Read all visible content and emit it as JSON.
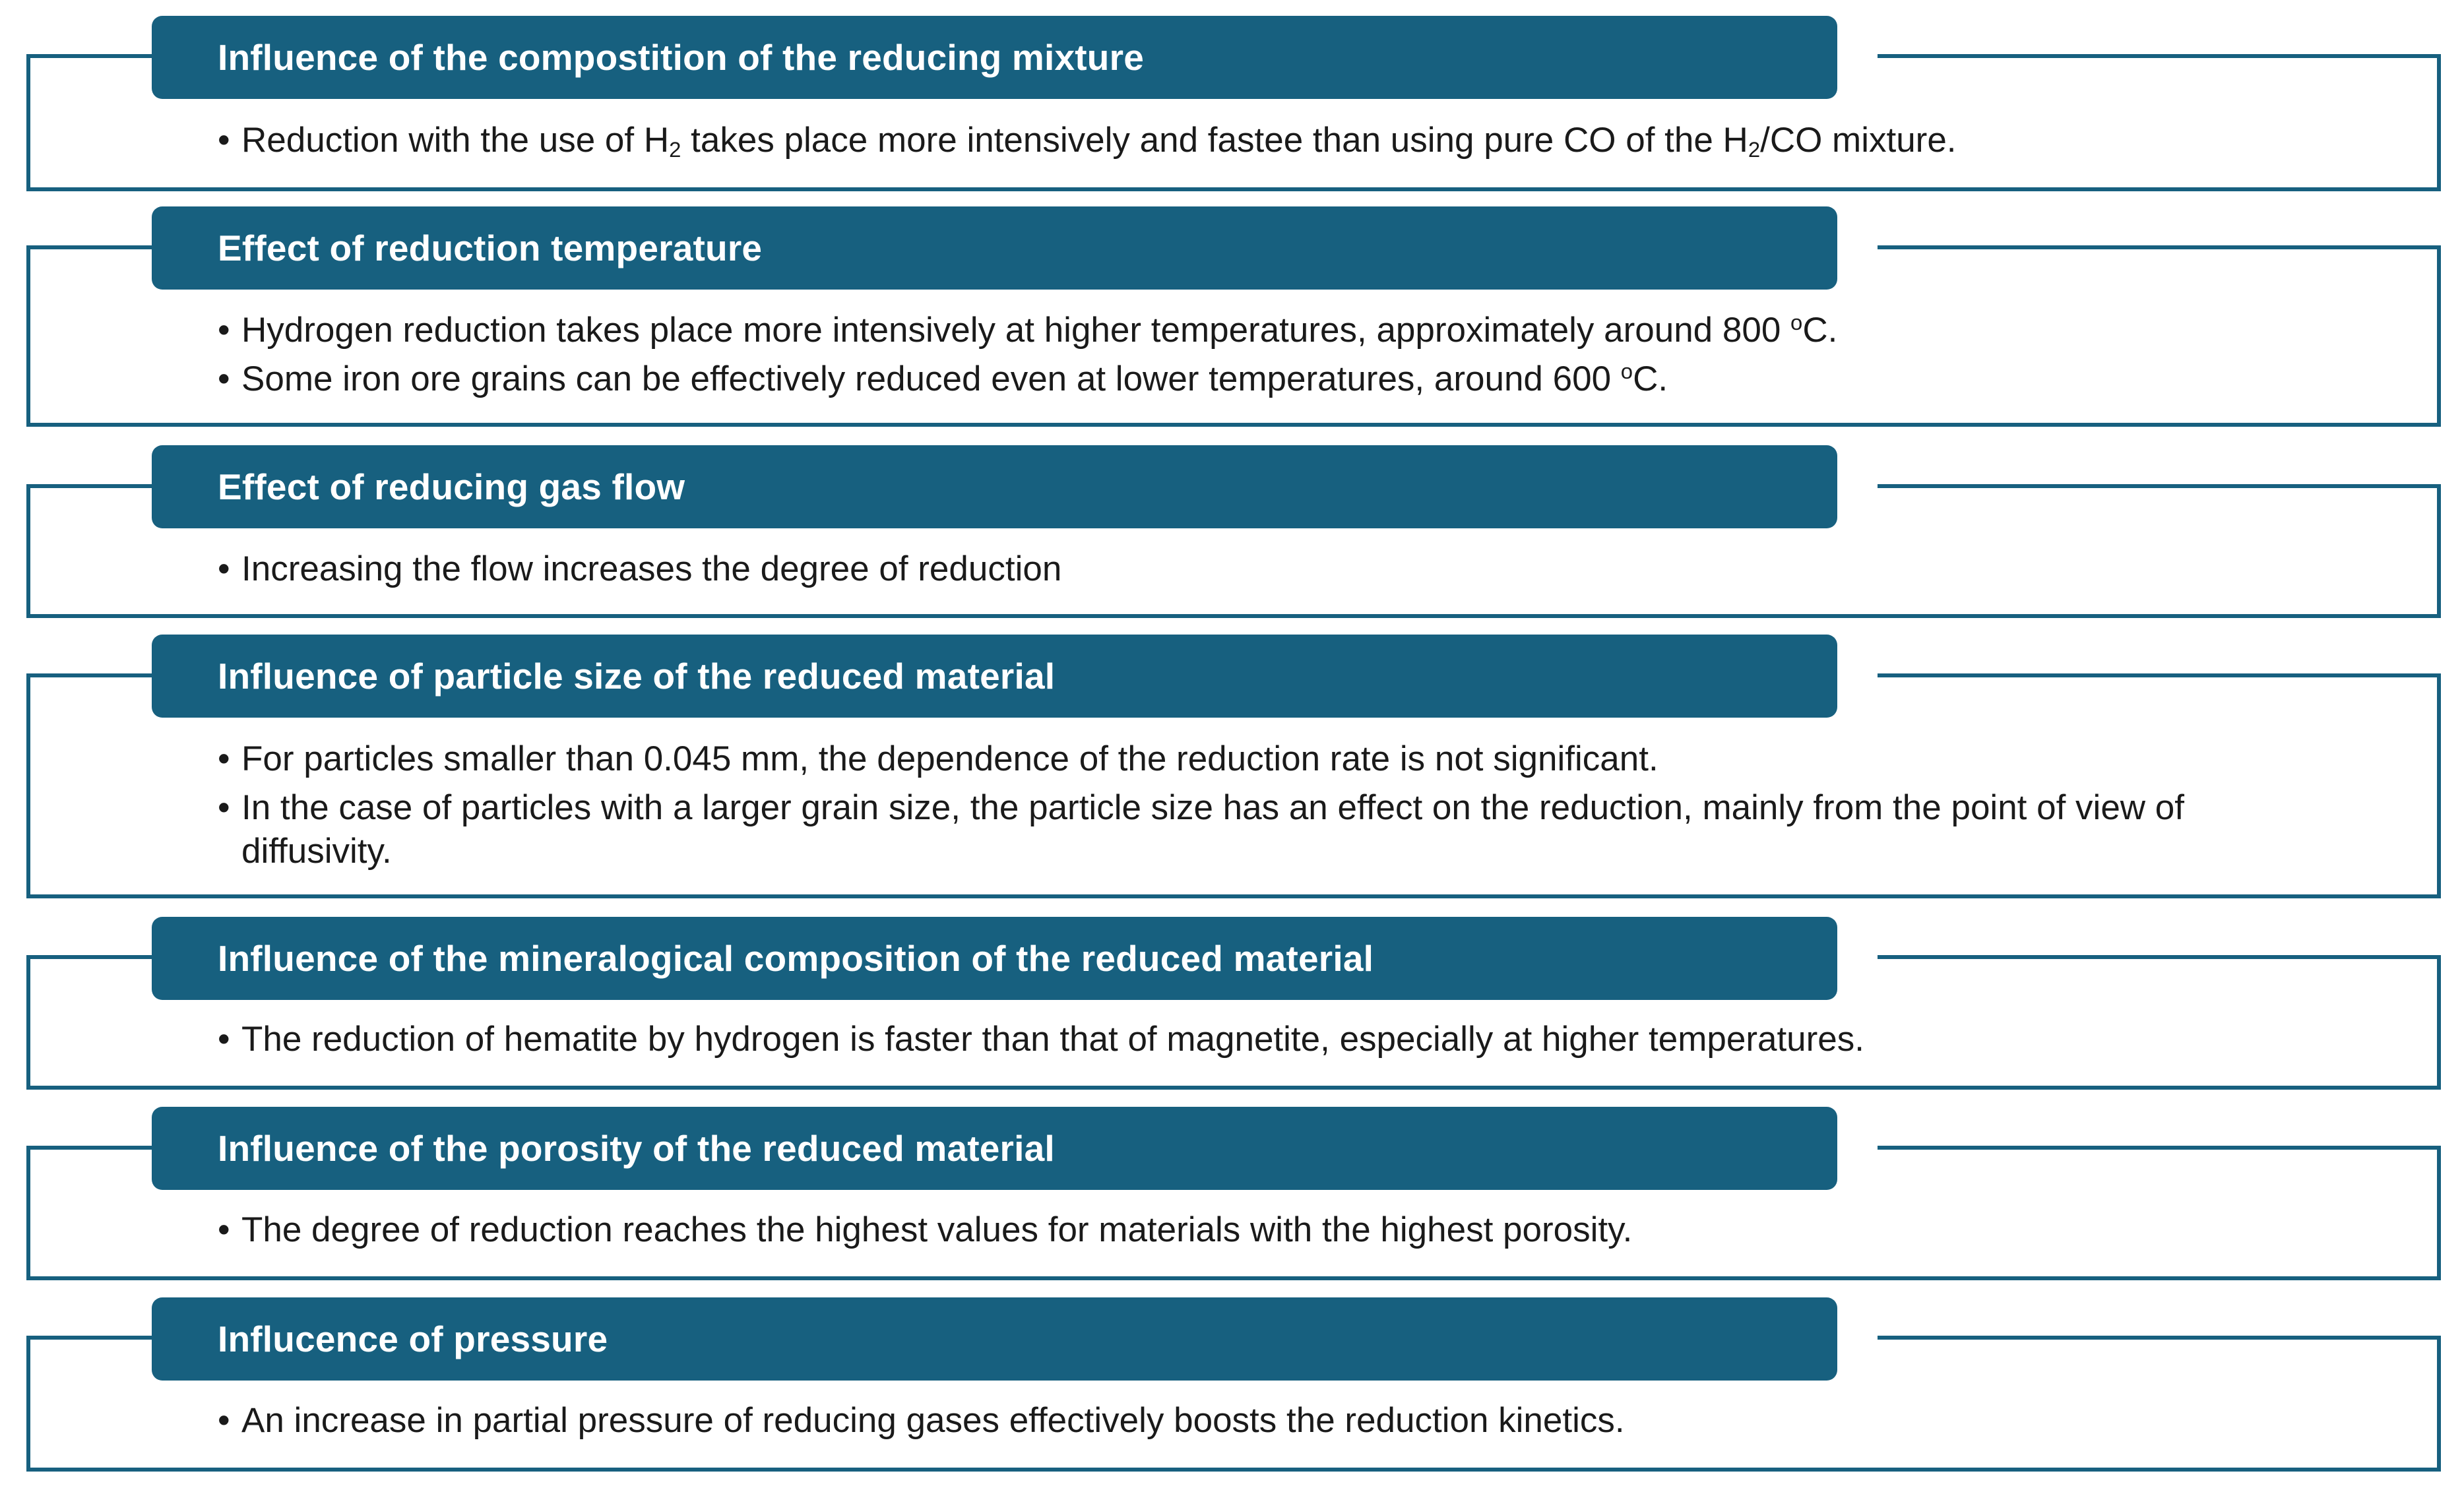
{
  "colors": {
    "header_background": "#17607f",
    "frame_border": "#17607f",
    "header_text": "#ffffff",
    "body_text": "#1a1a1a"
  },
  "bullet_symbol": "•",
  "sections": [
    {
      "title": "Influence of the compostition of the reducing mixture",
      "bullets": [
        {
          "parts": [
            "Reduction with the use of H",
            "2",
            " takes place more intensively and fastee than using pure CO of the H",
            "2",
            "/CO mixture."
          ]
        }
      ]
    },
    {
      "title": "Effect of reduction temperature",
      "bullets": [
        {
          "parts": [
            "Hydrogen reduction takes place more intensively at higher temperatures, approximately around 800 ",
            "o",
            "C."
          ]
        },
        {
          "parts": [
            "Some iron ore grains can be effectively reduced even at lower temperatures, around 600 ",
            "o",
            "C."
          ]
        }
      ]
    },
    {
      "title": "Effect of reducing gas flow",
      "bullets": [
        {
          "text": "Increasing the flow increases the degree of reduction"
        }
      ]
    },
    {
      "title": "Influence of particle size of the reduced material",
      "bullets": [
        {
          "text": "For particles smaller than 0.045 mm, the dependence of the reduction rate is not significant."
        },
        {
          "text": "In the case of particles with a larger grain size, the particle size has an effect on the reduction, mainly from the point of view of diffusivity."
        }
      ]
    },
    {
      "title": "Influence of the mineralogical composition of the reduced material",
      "bullets": [
        {
          "text": "The reduction of hematite by hydrogen is faster than that of magnetite, especially at higher temperatures."
        }
      ]
    },
    {
      "title": "Influence of the porosity of the reduced material",
      "bullets": [
        {
          "text": "The degree of reduction reaches the highest values for materials with the highest porosity."
        }
      ]
    },
    {
      "title": "Influcence of pressure",
      "bullets": [
        {
          "text": "An increase in partial pressure of reducing gases effectively boosts the reduction kinetics."
        }
      ]
    }
  ]
}
